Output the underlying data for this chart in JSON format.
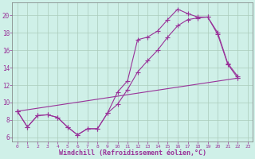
{
  "background_color": "#cff0e8",
  "grid_color": "#aaccbb",
  "line_color": "#993399",
  "marker": "+",
  "markersize": 4,
  "linewidth": 0.8,
  "xlabel": "Windchill (Refroidissement éolien,°C)",
  "xlabel_fontsize": 6,
  "ytick_labels": [
    "6",
    "8",
    "10",
    "12",
    "14",
    "16",
    "18",
    "20"
  ],
  "ytick_vals": [
    6,
    8,
    10,
    12,
    14,
    16,
    18,
    20
  ],
  "xlim": [
    -0.5,
    23.5
  ],
  "ylim": [
    5.5,
    21.5
  ],
  "xtick_fontsize": 4.5,
  "ytick_fontsize": 5.5,
  "line1_x": [
    0,
    1,
    2,
    3,
    4,
    5,
    6,
    7,
    8,
    9,
    10,
    11,
    12,
    13,
    14,
    15,
    16,
    17,
    18,
    19,
    20,
    21,
    22
  ],
  "line1_y": [
    9.0,
    7.2,
    8.5,
    8.6,
    8.3,
    7.2,
    6.3,
    7.0,
    7.0,
    8.8,
    11.2,
    12.5,
    17.2,
    17.5,
    18.2,
    19.5,
    20.7,
    20.2,
    19.8,
    19.8,
    18.0,
    14.5,
    13.0
  ],
  "line2_x": [
    0,
    1,
    2,
    3,
    4,
    5,
    6,
    7,
    8,
    9,
    10,
    11,
    12,
    13,
    14,
    15,
    16,
    17,
    18,
    19,
    20,
    21,
    22
  ],
  "line2_y": [
    9.0,
    7.2,
    8.5,
    8.6,
    8.3,
    7.2,
    6.3,
    7.0,
    7.0,
    8.8,
    9.8,
    11.5,
    13.5,
    14.8,
    16.0,
    17.5,
    18.8,
    19.5,
    19.7,
    19.8,
    17.8,
    14.4,
    12.8
  ],
  "line3_x": [
    0,
    22
  ],
  "line3_y": [
    9.0,
    12.8
  ]
}
